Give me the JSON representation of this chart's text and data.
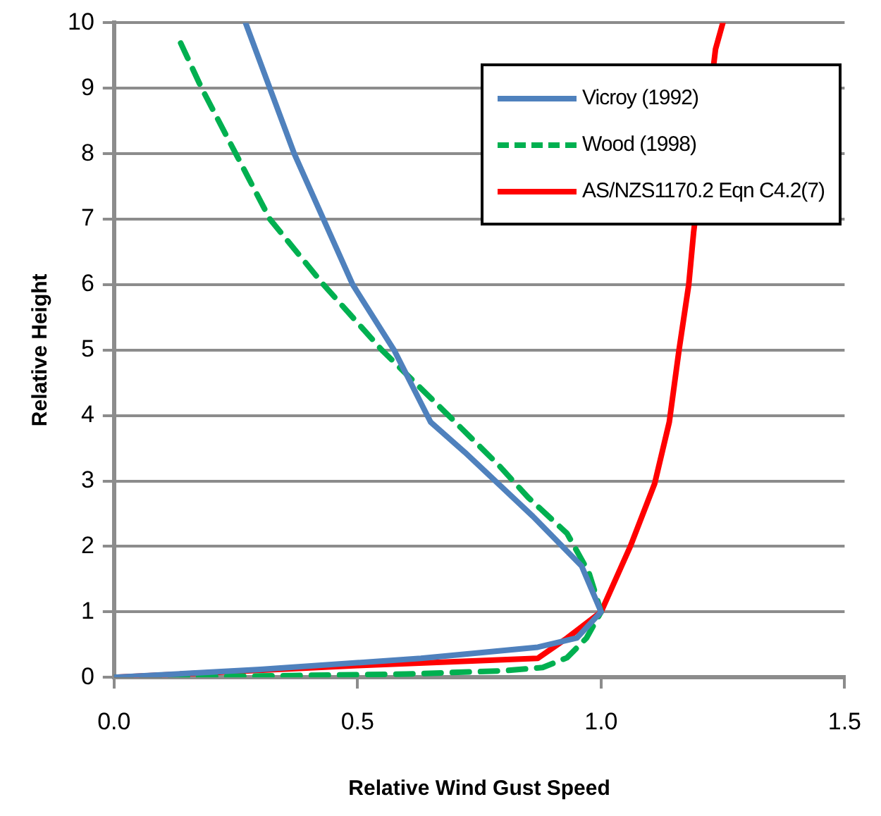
{
  "chart_data": {
    "type": "line",
    "xlabel": "Relative Wind Gust Speed",
    "ylabel": "Relative Height",
    "xlim": [
      0,
      1.5
    ],
    "xticks": [
      {
        "value": 0,
        "label": "0.0"
      },
      {
        "value": 0.5,
        "label": "0.5"
      },
      {
        "value": 1,
        "label": "1.0"
      },
      {
        "value": 1.5,
        "label": "1.5"
      }
    ],
    "ylim": [
      0,
      10
    ],
    "yticks": [
      0,
      1,
      2,
      3,
      4,
      5,
      6,
      7,
      8,
      9,
      10
    ],
    "grid": "y",
    "legend": "top right",
    "marker": "none",
    "series": [
      {
        "name": "Vicroy (1992)",
        "color": "#4f81bd",
        "line_style": "solid",
        "x": [
          0,
          0.3,
          0.63,
          0.87,
          0.95,
          1.0,
          0.96,
          0.86,
          0.72,
          0.65,
          0.575,
          0.49,
          0.43,
          0.37,
          0.32,
          0.27
        ],
        "values": [
          0,
          0.12,
          0.29,
          0.46,
          0.6,
          1.0,
          1.7,
          2.46,
          3.44,
          3.9,
          5,
          6,
          7,
          8,
          9,
          10
        ]
      },
      {
        "name": "Wood (1998)",
        "color": "#00b050",
        "line_style": "dashed",
        "x": [
          0,
          0.3,
          0.6,
          0.8,
          0.88,
          0.93,
          0.97,
          1.0,
          0.975,
          0.93,
          0.85,
          0.79,
          0.68,
          0.55,
          0.43,
          0.32,
          0.25,
          0.18,
          0.13
        ],
        "values": [
          0,
          0.02,
          0.05,
          0.1,
          0.15,
          0.3,
          0.6,
          1.0,
          1.6,
          2.2,
          2.75,
          3.24,
          4.05,
          5,
          6,
          7,
          8,
          9,
          9.8
        ]
      },
      {
        "name": "AS/NZS1170.2 Eqn C4.2(7)",
        "color": "#ff0000",
        "line_style": "solid",
        "x": [
          0,
          0.5,
          0.87,
          0.93,
          1.0,
          1.06,
          1.11,
          1.14,
          1.16,
          1.18,
          1.19,
          1.235,
          1.25
        ],
        "values": [
          0,
          0.18,
          0.29,
          0.6,
          1.0,
          2.0,
          2.96,
          3.9,
          5,
          6,
          6.8,
          9.6,
          10
        ]
      }
    ]
  }
}
